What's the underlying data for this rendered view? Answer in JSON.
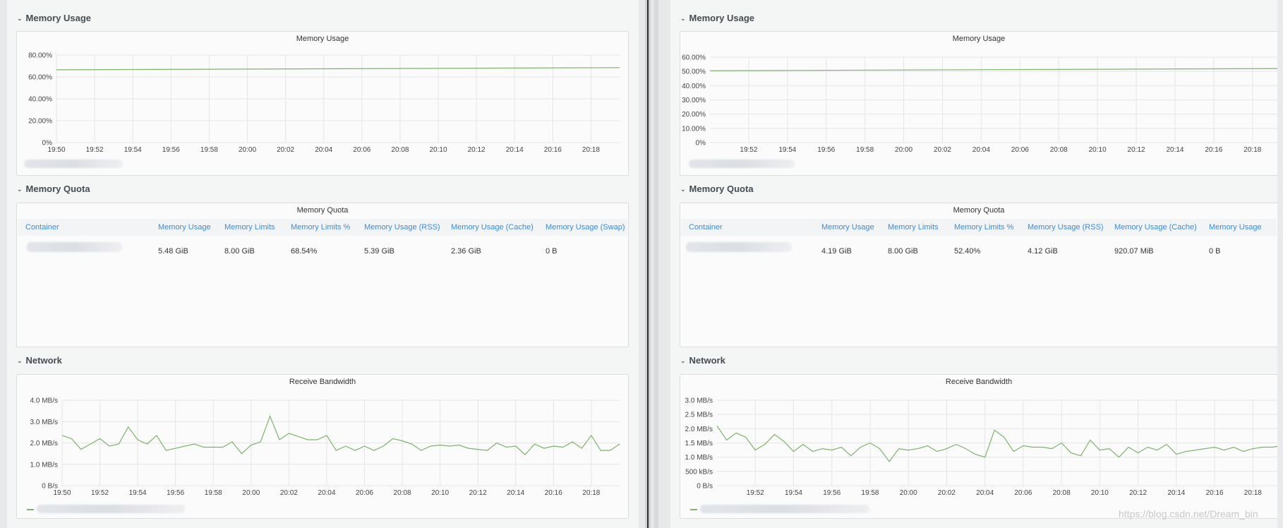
{
  "colors": {
    "series": "#7eb26d",
    "header_link": "#3d8bd7",
    "grid": "#e4e5e7"
  },
  "dashboards": [
    {
      "rows": {
        "memory_usage": "Memory Usage",
        "memory_quota": "Memory Quota",
        "network": "Network"
      },
      "memory_panel": {
        "title": "Memory Usage",
        "chart_data": {
          "type": "line",
          "title": "Memory Usage",
          "y_ticks": [
            "0%",
            "20.00%",
            "40.00%",
            "60.00%",
            "80.00%"
          ],
          "ylim": [
            0,
            80
          ],
          "x_ticks": [
            "19:50",
            "19:52",
            "19:54",
            "19:56",
            "19:58",
            "20:00",
            "20:02",
            "20:04",
            "20:06",
            "20:08",
            "20:10",
            "20:12",
            "20:14",
            "20:16",
            "20:18"
          ],
          "xlim": [
            0,
            29.5
          ],
          "grid": true,
          "series": [
            {
              "x": [
                0,
                29.5
              ],
              "values": [
                66.5,
                68.5
              ]
            }
          ]
        }
      },
      "quota_panel": {
        "title": "Memory Quota",
        "headers": [
          "Container",
          "Memory Usage",
          "Memory Limits",
          "Memory Limits %",
          "Memory Usage (RSS)",
          "Memory Usage (Cache)",
          "Memory Usage (Swap)"
        ],
        "row": [
          "",
          "5.48 GiB",
          "8.00 GiB",
          "68.54%",
          "5.39 GiB",
          "2.36 GiB",
          "0 B"
        ]
      },
      "network_panel": {
        "title": "Receive Bandwidth",
        "chart_data": {
          "type": "line",
          "title": "Receive Bandwidth",
          "y_ticks": [
            "0 B/s",
            "1.0 MB/s",
            "2.0 MB/s",
            "3.0 MB/s",
            "4.0 MB/s"
          ],
          "ylim": [
            0,
            4
          ],
          "x_ticks": [
            "19:50",
            "19:52",
            "19:54",
            "19:56",
            "19:58",
            "20:00",
            "20:02",
            "20:04",
            "20:06",
            "20:08",
            "20:10",
            "20:12",
            "20:14",
            "20:16",
            "20:18"
          ],
          "xlim": [
            0,
            29.5
          ],
          "grid": true,
          "series": [
            {
              "x": [
                0,
                0.5,
                1,
                1.5,
                2,
                2.5,
                3,
                3.5,
                4,
                4.5,
                5,
                5.5,
                6,
                6.5,
                7,
                7.5,
                8,
                8.5,
                9,
                9.5,
                10,
                10.5,
                11,
                11.5,
                12,
                12.5,
                13,
                13.5,
                14,
                14.5,
                15,
                15.5,
                16,
                16.5,
                17,
                17.5,
                18,
                18.5,
                19,
                19.5,
                20,
                20.5,
                21,
                21.5,
                22,
                22.5,
                23,
                23.5,
                24,
                24.5,
                25,
                25.5,
                26,
                26.5,
                27,
                27.5,
                28,
                28.5,
                29,
                29.5
              ],
              "values": [
                2.35,
                2.2,
                1.7,
                1.95,
                2.2,
                1.85,
                1.95,
                2.75,
                2.15,
                1.95,
                2.35,
                1.65,
                1.75,
                1.85,
                1.95,
                1.8,
                1.8,
                1.8,
                2.05,
                1.5,
                1.9,
                2.05,
                3.25,
                2.15,
                2.45,
                2.3,
                2.15,
                2.15,
                2.35,
                1.65,
                1.85,
                1.65,
                1.85,
                1.65,
                1.85,
                2.2,
                2.1,
                1.95,
                1.65,
                1.85,
                1.9,
                1.85,
                1.9,
                1.75,
                1.7,
                1.65,
                2.0,
                1.8,
                1.85,
                1.45,
                1.95,
                1.75,
                1.85,
                1.8,
                2.05,
                1.75,
                2.35,
                1.65,
                1.65,
                1.95
              ]
            }
          ]
        }
      }
    },
    {
      "rows": {
        "memory_usage": "Memory Usage",
        "memory_quota": "Memory Quota",
        "network": "Network"
      },
      "memory_panel": {
        "title": "Memory Usage",
        "chart_data": {
          "type": "line",
          "title": "Memory Usage",
          "y_ticks": [
            "0%",
            "10.00%",
            "20.00%",
            "30.00%",
            "40.00%",
            "50.00%",
            "60.00%"
          ],
          "ylim": [
            0,
            60
          ],
          "x_ticks": [
            "19:52",
            "19:54",
            "19:56",
            "19:58",
            "20:00",
            "20:02",
            "20:04",
            "20:06",
            "20:08",
            "20:10",
            "20:12",
            "20:14",
            "20:16",
            "20:18"
          ],
          "xlim": [
            0,
            29.5
          ],
          "grid": true,
          "series": [
            {
              "x": [
                0,
                29.5
              ],
              "values": [
                50.5,
                52.0
              ]
            }
          ]
        }
      },
      "quota_panel": {
        "title": "Memory Quota",
        "headers": [
          "Container",
          "Memory Usage",
          "Memory Limits",
          "Memory Limits %",
          "Memory Usage (RSS)",
          "Memory Usage (Cache)",
          "Memory Usage"
        ],
        "row": [
          "",
          "4.19 GiB",
          "8.00 GiB",
          "52.40%",
          "4.12 GiB",
          "920.07 MiB",
          "0 B"
        ]
      },
      "network_panel": {
        "title": "Receive Bandwidth",
        "chart_data": {
          "type": "line",
          "title": "Receive Bandwidth",
          "y_ticks": [
            "0 B/s",
            "500 kB/s",
            "1.0 MB/s",
            "1.5 MB/s",
            "2.0 MB/s",
            "2.5 MB/s",
            "3.0 MB/s"
          ],
          "ylim": [
            0,
            3
          ],
          "x_ticks": [
            "19:52",
            "19:54",
            "19:56",
            "19:58",
            "20:00",
            "20:02",
            "20:04",
            "20:06",
            "20:08",
            "20:10",
            "20:12",
            "20:14",
            "20:16",
            "20:18"
          ],
          "xlim": [
            0,
            29.5
          ],
          "grid": true,
          "series": [
            {
              "x": [
                0,
                0.5,
                1,
                1.5,
                2,
                2.5,
                3,
                3.5,
                4,
                4.5,
                5,
                5.5,
                6,
                6.5,
                7,
                7.5,
                8,
                8.5,
                9,
                9.5,
                10,
                10.5,
                11,
                11.5,
                12,
                12.5,
                13,
                13.5,
                14,
                14.5,
                15,
                15.5,
                16,
                16.5,
                17,
                17.5,
                18,
                18.5,
                19,
                19.5,
                20,
                20.5,
                21,
                21.5,
                22,
                22.5,
                23,
                23.5,
                24,
                24.5,
                25,
                25.5,
                26,
                26.5,
                27,
                27.5,
                28,
                28.5,
                29,
                29.5
              ],
              "values": [
                2.1,
                1.6,
                1.85,
                1.7,
                1.25,
                1.45,
                1.8,
                1.55,
                1.2,
                1.45,
                1.2,
                1.3,
                1.25,
                1.35,
                1.05,
                1.35,
                1.5,
                1.3,
                0.85,
                1.3,
                1.25,
                1.3,
                1.4,
                1.2,
                1.3,
                1.45,
                1.3,
                1.1,
                1.0,
                1.95,
                1.7,
                1.2,
                1.4,
                1.35,
                1.35,
                1.3,
                1.5,
                1.15,
                1.05,
                1.6,
                1.25,
                1.3,
                1.0,
                1.35,
                1.15,
                1.35,
                1.25,
                1.45,
                1.1,
                1.2,
                1.25,
                1.3,
                1.35,
                1.25,
                1.35,
                1.2,
                1.3,
                1.35,
                1.35,
                1.4
              ]
            }
          ]
        }
      }
    }
  ],
  "watermark": "https://blog.csdn.net/Dream_bin"
}
